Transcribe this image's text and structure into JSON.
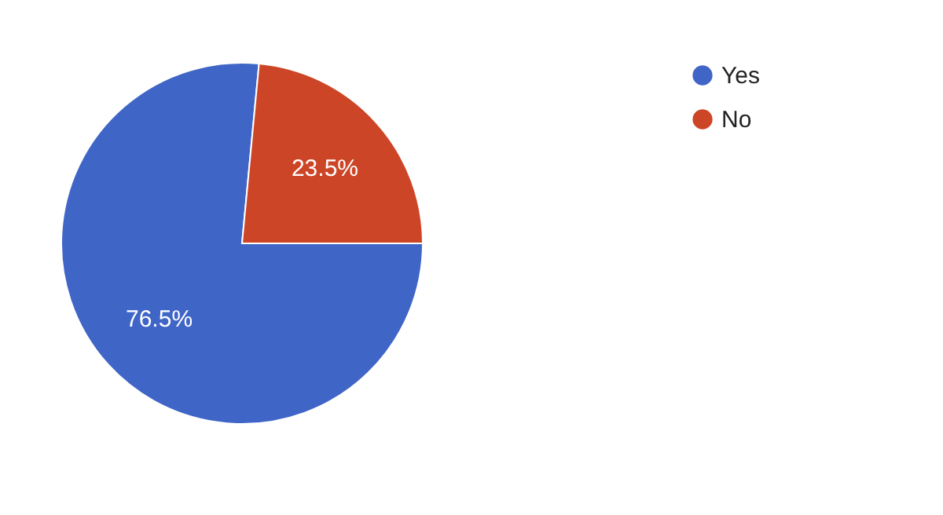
{
  "chart_data": {
    "type": "pie",
    "categories": [
      "Yes",
      "No"
    ],
    "values": [
      76.5,
      23.5
    ],
    "colors": [
      "#3f65c7",
      "#cc4526"
    ],
    "value_labels": [
      "76.5%",
      "23.5%"
    ],
    "legend": "top right"
  }
}
